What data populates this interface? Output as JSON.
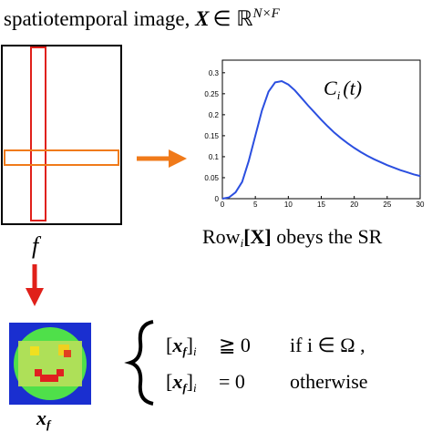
{
  "header": {
    "title": "spatiotemporal image,",
    "matrix": "X",
    "member": "∈ ℝ",
    "dims": "N×F"
  },
  "left_label": "f",
  "row_caption": {
    "row": "Row",
    "index": "i",
    "matrix": "[X]",
    "rest": "obeys the SR"
  },
  "image_label": {
    "base": "x",
    "sub": "f"
  },
  "constraints": [
    {
      "open": "[",
      "var": "x",
      "sub": "f",
      "close": "]",
      "index": "i",
      "relation": "≧ 0",
      "condition": "if  i ∈ Ω ,"
    },
    {
      "open": "[",
      "var": "x",
      "sub": "f",
      "close": "]",
      "index": "i",
      "relation": "= 0",
      "condition": "otherwise"
    }
  ],
  "chart_data": {
    "type": "line",
    "label": {
      "base": "C",
      "sub": "i",
      "arg": "(t)"
    },
    "x": [
      0,
      1,
      2,
      3,
      4,
      5,
      6,
      7,
      8,
      9,
      10,
      11,
      12,
      13,
      14,
      15,
      16,
      17,
      18,
      19,
      20,
      21,
      22,
      23,
      24,
      25,
      26,
      27,
      28,
      29,
      30
    ],
    "series": [
      {
        "color": "#2b4fe0",
        "values": [
          0,
          0.003,
          0.015,
          0.04,
          0.09,
          0.15,
          0.21,
          0.255,
          0.277,
          0.28,
          0.272,
          0.258,
          0.24,
          0.222,
          0.205,
          0.188,
          0.172,
          0.157,
          0.144,
          0.132,
          0.121,
          0.111,
          0.102,
          0.094,
          0.087,
          0.08,
          0.074,
          0.068,
          0.063,
          0.058,
          0.054
        ]
      }
    ],
    "xlim": [
      0,
      30
    ],
    "xticks": [
      0,
      5,
      10,
      15,
      20,
      25,
      30
    ],
    "ylim": [
      0,
      0.33
    ],
    "yticks": [
      0,
      0.05,
      0.1,
      0.15,
      0.2,
      0.25,
      0.3
    ]
  }
}
